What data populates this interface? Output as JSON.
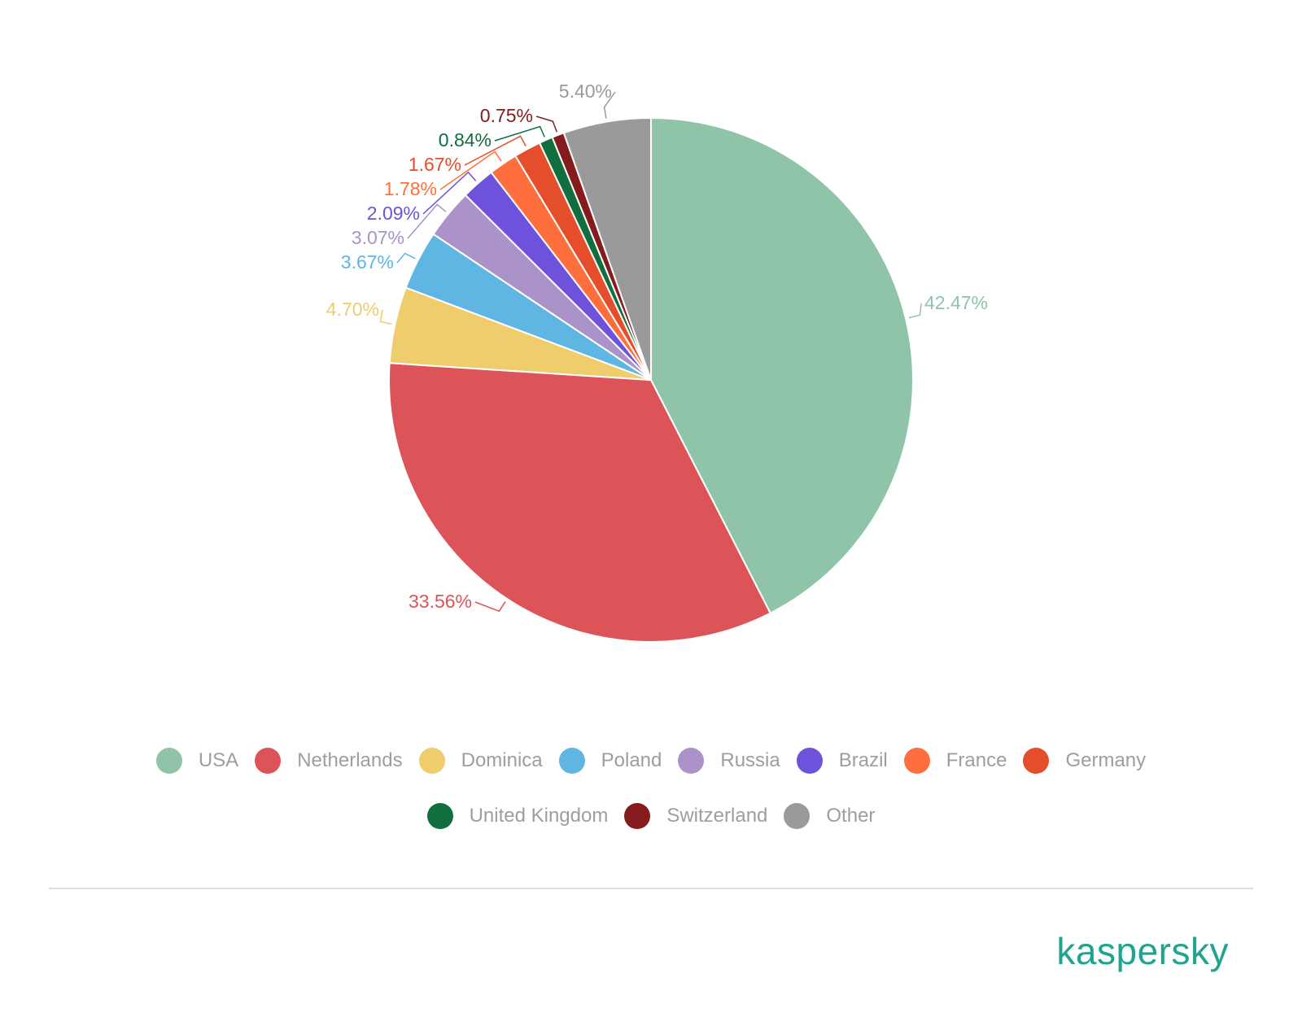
{
  "chart_data": {
    "type": "pie",
    "categories": [
      "USA",
      "Netherlands",
      "Dominica",
      "Poland",
      "Russia",
      "Brazil",
      "France",
      "Germany",
      "United Kingdom",
      "Switzerland",
      "Other"
    ],
    "values": [
      42.47,
      33.56,
      4.7,
      3.67,
      3.07,
      2.09,
      1.78,
      1.67,
      0.84,
      0.75,
      5.4
    ],
    "labels": [
      "42.47%",
      "33.56%",
      "4.70%",
      "3.67%",
      "3.07%",
      "2.09%",
      "1.78%",
      "1.67%",
      "0.84%",
      "0.75%",
      "5.40%"
    ],
    "colors": [
      "#90c4a8",
      "#dc5457",
      "#efcc6c",
      "#5fb6e3",
      "#ab93ca",
      "#6e52dc",
      "#ff6f3d",
      "#e54e2a",
      "#116f3f",
      "#861b1e",
      "#9a9a9a"
    ],
    "legend_position": "bottom"
  },
  "brand": {
    "name": "kaspersky"
  }
}
